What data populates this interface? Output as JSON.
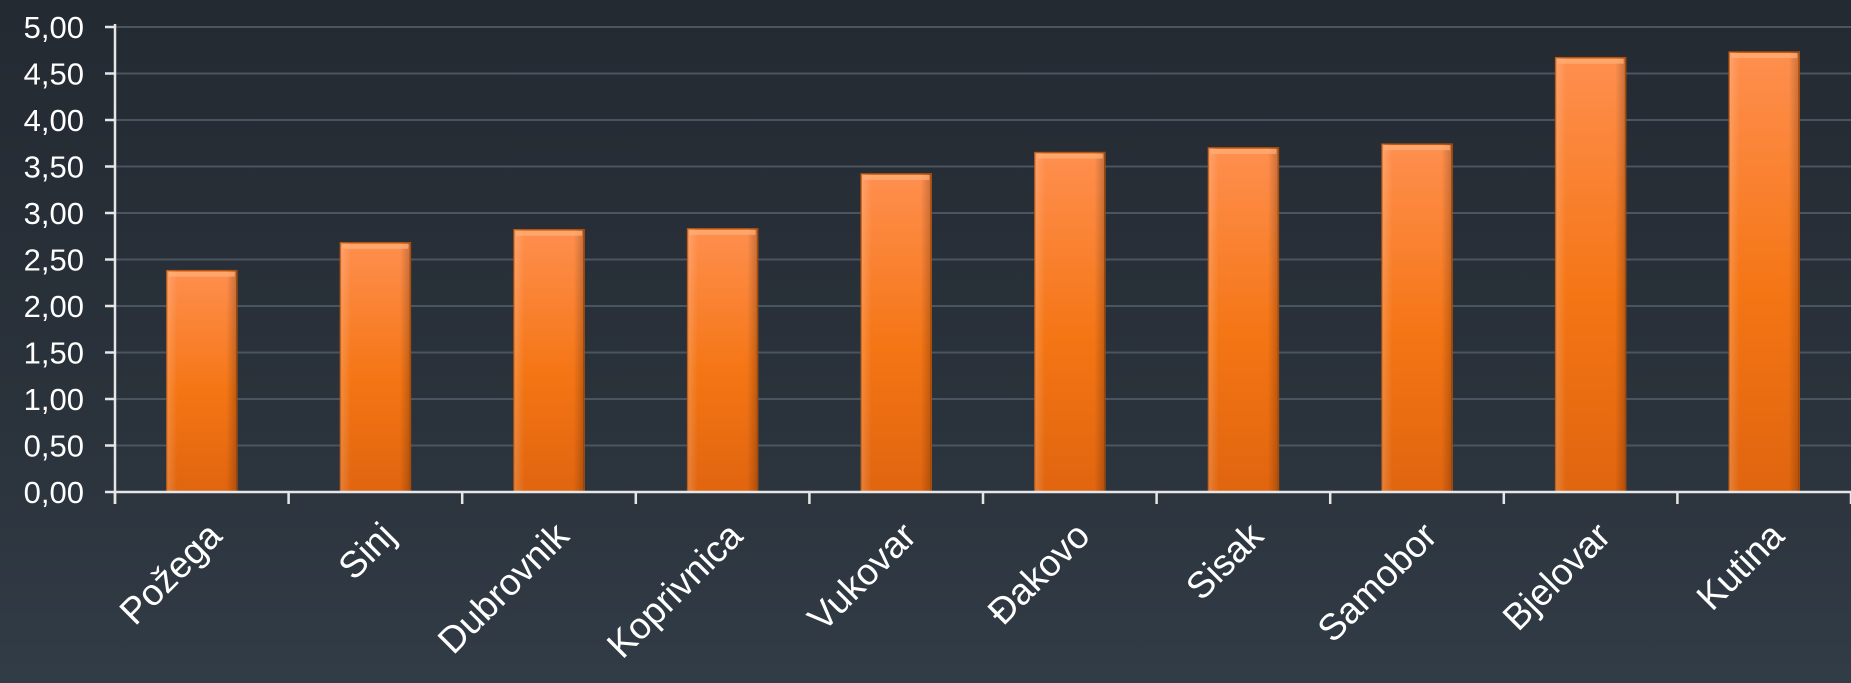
{
  "chart_data": {
    "type": "bar",
    "categories": [
      "Požega",
      "Sinj",
      "Dubrovnik",
      "Koprivnica",
      "Vukovar",
      "Đakovo",
      "Sisak",
      "Samobor",
      "Bjelovar",
      "Kutina"
    ],
    "values": [
      2.38,
      2.68,
      2.82,
      2.83,
      3.42,
      3.65,
      3.7,
      3.74,
      4.67,
      4.73
    ],
    "ylim": [
      0,
      5
    ],
    "yticks": [
      "0,00",
      "0,50",
      "1,00",
      "1,50",
      "2,00",
      "2,50",
      "3,00",
      "3,50",
      "4,00",
      "4,50",
      "5,00"
    ],
    "grid": true,
    "legend": "none",
    "bar_color": "#f57a2a"
  }
}
